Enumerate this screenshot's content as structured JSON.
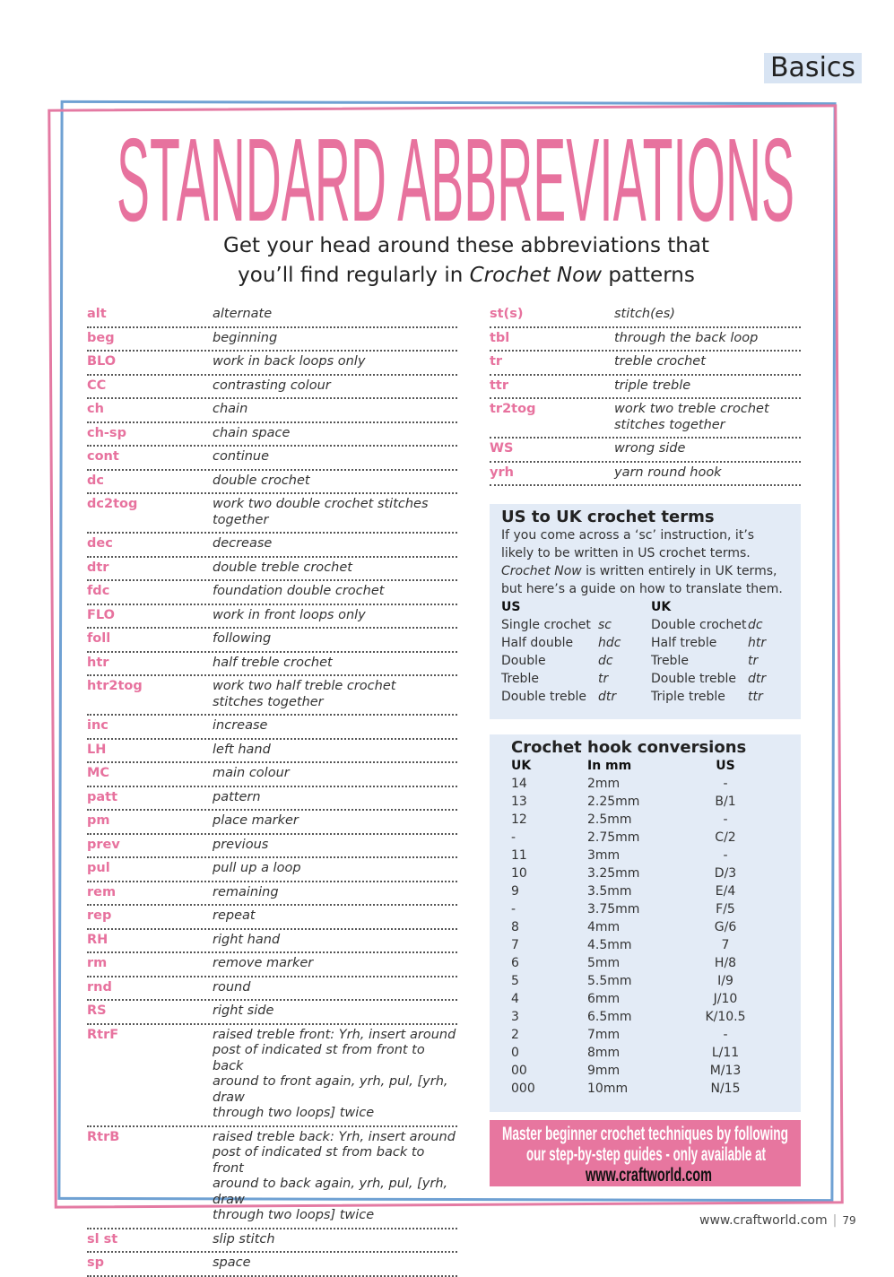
{
  "section_tag": "Basics",
  "title": "STANDARD ABBREVIATIONS",
  "subtitle_line1": "Get your head around these abbreviations that",
  "subtitle_line2_pre": "you’ll find regularly in ",
  "subtitle_line2_em": "Crochet Now",
  "subtitle_line2_post": " patterns",
  "left_abbreviations": [
    [
      "alt",
      "alternate"
    ],
    [
      "beg",
      "beginning"
    ],
    [
      "BLO",
      "work in back loops only"
    ],
    [
      "CC",
      "contrasting colour"
    ],
    [
      "ch",
      "chain"
    ],
    [
      "ch-sp",
      "chain space"
    ],
    [
      "cont",
      "continue"
    ],
    [
      "dc",
      "double crochet"
    ],
    [
      "dc2tog",
      "work two double crochet stitches together"
    ],
    [
      "dec",
      "decrease"
    ],
    [
      "dtr",
      "double treble crochet"
    ],
    [
      "fdc",
      "foundation double crochet"
    ],
    [
      "FLO",
      "work in front loops only"
    ],
    [
      "foll",
      "following"
    ],
    [
      "htr",
      "half treble crochet"
    ],
    [
      "htr2tog",
      "work two half treble crochet\nstitches together"
    ],
    [
      "inc",
      "increase"
    ],
    [
      "LH",
      "left hand"
    ],
    [
      "MC",
      "main colour"
    ],
    [
      "patt",
      "pattern"
    ],
    [
      "pm",
      "place marker"
    ],
    [
      "prev",
      "previous"
    ],
    [
      "pul",
      "pull up a loop"
    ],
    [
      "rem",
      "remaining"
    ],
    [
      "rep",
      "repeat"
    ],
    [
      "RH",
      "right hand"
    ],
    [
      "rm",
      "remove marker"
    ],
    [
      "rnd",
      "round"
    ],
    [
      "RS",
      "right side"
    ],
    [
      "RtrF",
      "raised treble front: Yrh, insert around\npost of indicated st from front to back\naround to front again, yrh, pul, [yrh, draw\nthrough two loops] twice"
    ],
    [
      "RtrB",
      "raised treble back: Yrh, insert around\npost of indicated st from back  to front\naround to back again, yrh, pul, [yrh, draw\nthrough two loops] twice"
    ],
    [
      "sl st",
      "slip stitch"
    ],
    [
      "sp",
      "space"
    ]
  ],
  "right_abbreviations": [
    [
      "st(s)",
      "stitch(es)"
    ],
    [
      "tbl",
      "through the back loop"
    ],
    [
      "tr",
      "treble crochet"
    ],
    [
      "ttr",
      "triple treble"
    ],
    [
      "tr2tog",
      "work two treble crochet\nstitches together"
    ],
    [
      "WS",
      "wrong side"
    ],
    [
      "yrh",
      "yarn round hook"
    ]
  ],
  "us_uk": {
    "heading": "US to UK crochet terms",
    "intro_pre": "If you come across a ‘sc’ instruction, it’s likely to be written in US crochet terms. ",
    "intro_em": "Crochet Now",
    "intro_post": " is written entirely in UK terms, but here’s a guide on how to translate them.",
    "us_header": "US",
    "uk_header": "UK",
    "rows": [
      [
        "Single crochet",
        "sc",
        "Double crochet",
        "dc"
      ],
      [
        "Half double",
        "hdc",
        "Half treble",
        "htr"
      ],
      [
        "Double",
        "dc",
        "Treble",
        "tr"
      ],
      [
        "Treble",
        "tr",
        "Double treble",
        "dtr"
      ],
      [
        "Double treble",
        "dtr",
        "Triple treble",
        "ttr"
      ]
    ]
  },
  "hooks": {
    "heading": "Crochet hook conversions",
    "headers": [
      "UK",
      "In mm",
      "US"
    ],
    "rows": [
      [
        "14",
        "2mm",
        "-"
      ],
      [
        "13",
        "2.25mm",
        "B/1"
      ],
      [
        "12",
        "2.5mm",
        "-"
      ],
      [
        "-",
        "2.75mm",
        "C/2"
      ],
      [
        "11",
        "3mm",
        "-"
      ],
      [
        "10",
        "3.25mm",
        "D/3"
      ],
      [
        "9",
        "3.5mm",
        "E/4"
      ],
      [
        "-",
        "3.75mm",
        "F/5"
      ],
      [
        "8",
        "4mm",
        "G/6"
      ],
      [
        "7",
        "4.5mm",
        "7"
      ],
      [
        "6",
        "5mm",
        "H/8"
      ],
      [
        "5",
        "5.5mm",
        "I/9"
      ],
      [
        "4",
        "6mm",
        "J/10"
      ],
      [
        "3",
        "6.5mm",
        "K/10.5"
      ],
      [
        "2",
        "7mm",
        "-"
      ],
      [
        "0",
        "8mm",
        "L/11"
      ],
      [
        "00",
        "9mm",
        "M/13"
      ],
      [
        "000",
        "10mm",
        "N/15"
      ]
    ]
  },
  "promo": {
    "line1": "Master beginner crochet techniques by following",
    "line2": "our step-by-step guides - only available at",
    "url": "www.craftworld.com"
  },
  "footer": {
    "site": "www.craftworld.com",
    "page": "79"
  },
  "colors": {
    "pink": "#e7729e",
    "blue_frame": "#6fa1d3",
    "box_bg": "#e3ebf6"
  }
}
